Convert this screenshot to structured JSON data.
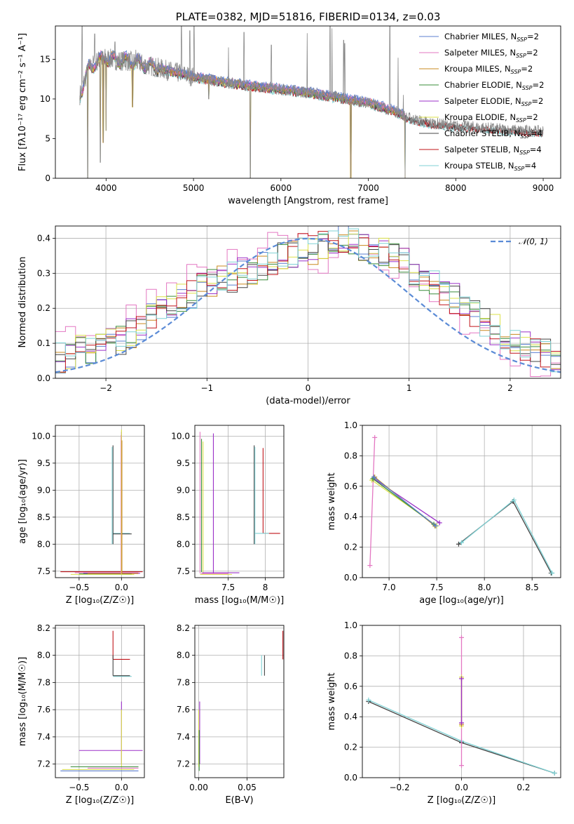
{
  "colors": {
    "chabrier_miles": "#5b7fd1",
    "salpeter_miles": "#e377c2",
    "kroupa_miles": "#c9881f",
    "chabrier_elodie": "#3a8c3a",
    "salpeter_elodie": "#9b30c8",
    "kroupa_elodie": "#dbe04a",
    "chabrier_stelib": "#444444",
    "salpeter_stelib": "#c0141a",
    "kroupa_stelib": "#7fd1d4",
    "normal": "#5b8bd6",
    "grid": "#b0b0b0"
  },
  "chart_data": [
    {
      "id": "spectrum",
      "type": "line",
      "title": "PLATE=0382, MJD=51816, FIBERID=0134, z=0.03",
      "xlabel": "wavelength [Angstrom, rest frame]",
      "ylabel": "Flux [fλ10⁻¹⁷ erg cm⁻² s⁻¹ A⁻¹]",
      "xlim": [
        3420,
        9200
      ],
      "ylim": [
        0,
        19.2
      ],
      "xticks": [
        4000,
        5000,
        6000,
        7000,
        8000,
        9000
      ],
      "yticks": [
        0,
        5,
        10,
        15
      ],
      "grid": false,
      "legend_position": "top-right",
      "data_color": "#8a8a8a",
      "data_wavelength_range": [
        3700,
        9000
      ],
      "continuum": [
        [
          3700,
          10.5
        ],
        [
          3800,
          13.8
        ],
        [
          3900,
          14.8
        ],
        [
          4000,
          15.2
        ],
        [
          4100,
          14.9
        ],
        [
          4300,
          14.7
        ],
        [
          4500,
          14.2
        ],
        [
          4700,
          13.6
        ],
        [
          5000,
          12.8
        ],
        [
          5300,
          12.2
        ],
        [
          5600,
          11.7
        ],
        [
          6000,
          11.2
        ],
        [
          6300,
          10.8
        ],
        [
          6600,
          10.3
        ],
        [
          7000,
          9.5
        ],
        [
          7300,
          8.5
        ],
        [
          7450,
          7.6
        ],
        [
          7700,
          7.0
        ],
        [
          8000,
          6.6
        ],
        [
          8300,
          6.4
        ],
        [
          8600,
          6.1
        ],
        [
          9000,
          5.9
        ]
      ],
      "emission_lines": [
        [
          3727,
          19.2
        ],
        [
          3869,
          18.2
        ],
        [
          4101,
          17.2
        ],
        [
          4340,
          16.2
        ],
        [
          4861,
          19.2
        ],
        [
          4959,
          18.6
        ],
        [
          5007,
          19.2
        ],
        [
          5400,
          16.5
        ],
        [
          5577,
          18.4
        ],
        [
          5890,
          16.8
        ],
        [
          6300,
          18.3
        ],
        [
          6563,
          19.2
        ],
        [
          6584,
          18.9
        ],
        [
          6717,
          17.4
        ],
        [
          6731,
          17.0
        ],
        [
          7245,
          19.2
        ],
        [
          7340,
          15.2
        ],
        [
          7400,
          10.5
        ]
      ],
      "absorption_lines": [
        [
          3790,
          0.0
        ],
        [
          3933,
          2.0
        ],
        [
          3968,
          4.5
        ],
        [
          4000,
          6.0
        ],
        [
          4304,
          9.0
        ],
        [
          5175,
          10.0
        ],
        [
          5650,
          0.0
        ],
        [
          6800,
          0.0
        ],
        [
          7420,
          0.0
        ]
      ],
      "legend": [
        {
          "label": "Chabrier MILES, N",
          "sub": "SSP",
          "suffix": "=2",
          "color_key": "chabrier_miles"
        },
        {
          "label": "Salpeter MILES, N",
          "sub": "SSP",
          "suffix": "=2",
          "color_key": "salpeter_miles"
        },
        {
          "label": "Kroupa MILES, N",
          "sub": "SSP",
          "suffix": "=2",
          "color_key": "kroupa_miles"
        },
        {
          "label": "Chabrier ELODIE, N",
          "sub": "SSP",
          "suffix": "=2",
          "color_key": "chabrier_elodie"
        },
        {
          "label": "Salpeter ELODIE, N",
          "sub": "SSP",
          "suffix": "=2",
          "color_key": "salpeter_elodie"
        },
        {
          "label": "Kroupa ELODIE, N",
          "sub": "SSP",
          "suffix": "=2",
          "color_key": "kroupa_elodie"
        },
        {
          "label": "Chabrier STELIB, N",
          "sub": "SSP",
          "suffix": "=4",
          "color_key": "chabrier_stelib"
        },
        {
          "label": "Salpeter STELIB, N",
          "sub": "SSP",
          "suffix": "=4",
          "color_key": "salpeter_stelib"
        },
        {
          "label": "Kroupa STELIB, N",
          "sub": "SSP",
          "suffix": "=4",
          "color_key": "kroupa_stelib"
        }
      ]
    },
    {
      "id": "residuals",
      "type": "line",
      "xlabel": "(data-model)/error",
      "ylabel": "Normed distribution",
      "xlim": [
        -2.5,
        2.5
      ],
      "ylim": [
        0,
        0.435
      ],
      "xticks": [
        -2,
        -1,
        0,
        1,
        2
      ],
      "yticks": [
        0.0,
        0.1,
        0.2,
        0.3,
        0.4
      ],
      "grid": true,
      "legend_position": "top-right",
      "legend": [
        {
          "label": "𝒩(0, 1)",
          "color_key": "normal"
        }
      ],
      "bin_width": 0.1,
      "histogram_base": [
        0.06,
        0.07,
        0.08,
        0.07,
        0.09,
        0.1,
        0.11,
        0.13,
        0.15,
        0.17,
        0.19,
        0.21,
        0.23,
        0.24,
        0.26,
        0.27,
        0.28,
        0.29,
        0.3,
        0.31,
        0.32,
        0.33,
        0.35,
        0.36,
        0.37,
        0.37,
        0.38,
        0.39,
        0.4,
        0.39,
        0.38,
        0.37,
        0.36,
        0.35,
        0.33,
        0.31,
        0.29,
        0.27,
        0.25,
        0.23,
        0.2,
        0.18,
        0.16,
        0.14,
        0.12,
        0.11,
        0.09,
        0.08,
        0.07,
        0.06
      ]
    },
    {
      "id": "age-vs-Z",
      "type": "scatter",
      "xlabel": "Z [log₁₀(Z/Z☉)]",
      "ylabel": "age  [log₁₀(age/yr)]",
      "xlim": [
        -0.78,
        0.27
      ],
      "ylim": [
        7.38,
        10.2
      ],
      "xticks": [
        -0.5,
        0.0
      ],
      "xtick_labels": [
        "−0.5",
        "0.0"
      ],
      "yticks": [
        7.5,
        8.0,
        8.5,
        9.0,
        9.5,
        10.0
      ],
      "grid": true,
      "segments": [
        [
          "salpeter_stelib",
          -0.72,
          7.49,
          0.25,
          7.49
        ],
        [
          "salpeter_miles",
          -0.55,
          7.47,
          0.2,
          7.47
        ],
        [
          "salpeter_elodie",
          -0.45,
          7.46,
          0.22,
          7.46
        ],
        [
          "kroupa_elodie",
          -0.6,
          7.44,
          0.15,
          7.44
        ],
        [
          "chabrier_elodie",
          -0.5,
          7.45,
          0.12,
          7.45
        ],
        [
          "kroupa_miles",
          -0.4,
          7.455,
          0.2,
          7.455
        ],
        [
          "kroupa_stelib",
          -0.1,
          8.2,
          0.1,
          8.2
        ],
        [
          "chabrier_stelib",
          -0.1,
          8.19,
          0.12,
          8.19
        ],
        [
          "chabrier_stelib",
          -0.1,
          8.0,
          -0.1,
          9.83
        ],
        [
          "kroupa_stelib",
          -0.11,
          8.0,
          -0.11,
          9.8
        ],
        [
          "salpeter_elodie",
          0.0,
          7.44,
          0.0,
          10.08
        ],
        [
          "salpeter_miles",
          -0.005,
          7.45,
          -0.005,
          10.02
        ],
        [
          "kroupa_elodie",
          0.0,
          7.43,
          0.0,
          10.12
        ],
        [
          "kroupa_miles",
          0.005,
          7.45,
          0.005,
          9.92
        ]
      ]
    },
    {
      "id": "age-vs-mass",
      "type": "scatter",
      "xlabel": "mass [log₁₀(M/M☉)]",
      "xlim": [
        7.05,
        8.25
      ],
      "ylim": [
        7.38,
        10.2
      ],
      "xticks": [
        7.5,
        8.0
      ],
      "yticks": [
        7.5,
        8.0,
        8.5,
        9.0,
        9.5,
        10.0
      ],
      "grid": true,
      "segments": [
        [
          "salpeter_miles",
          7.12,
          7.46,
          7.12,
          10.08
        ],
        [
          "chabrier_elodie",
          7.14,
          7.48,
          7.14,
          9.95
        ],
        [
          "kroupa_elodie",
          7.16,
          7.44,
          7.16,
          9.9
        ],
        [
          "salpeter_elodie",
          7.3,
          7.45,
          7.3,
          10.05
        ],
        [
          "salpeter_elodie",
          7.15,
          7.47,
          7.65,
          7.47
        ],
        [
          "kroupa_elodie",
          7.12,
          7.44,
          7.55,
          7.44
        ],
        [
          "salpeter_miles",
          7.13,
          7.455,
          7.5,
          7.455
        ],
        [
          "chabrier_stelib",
          7.85,
          8.0,
          7.85,
          9.83
        ],
        [
          "kroupa_stelib",
          7.86,
          8.0,
          7.86,
          9.8
        ],
        [
          "salpeter_stelib",
          7.97,
          8.2,
          7.97,
          9.78
        ],
        [
          "salpeter_stelib",
          7.97,
          8.2,
          8.2,
          8.2
        ],
        [
          "kroupa_stelib",
          7.86,
          8.2,
          8.05,
          8.2
        ]
      ]
    },
    {
      "id": "mass-weight-vs-age",
      "type": "line",
      "xlabel": "age  [log₁₀(age/yr)]",
      "ylabel": "mass weight",
      "xlim": [
        6.72,
        8.8
      ],
      "ylim": [
        0.0,
        1.0
      ],
      "xticks": [
        7.0,
        7.5,
        8.0,
        8.5
      ],
      "xtick_labels": [
        "7.0",
        "7.5",
        "8.0",
        "8.5"
      ],
      "yticks": [
        0.0,
        0.2,
        0.4,
        0.6,
        0.8,
        1.0
      ],
      "grid": true,
      "series": [
        {
          "color_key": "salpeter_miles",
          "points": [
            [
              6.8,
              0.08
            ],
            [
              6.85,
              0.92
            ]
          ]
        },
        {
          "color_key": "salpeter_elodie",
          "points": [
            [
              6.84,
              0.65
            ],
            [
              7.53,
              0.36
            ]
          ]
        },
        {
          "color_key": "kroupa_miles",
          "points": [
            [
              6.85,
              0.66
            ],
            [
              7.48,
              0.34
            ]
          ]
        },
        {
          "color_key": "kroupa_elodie",
          "points": [
            [
              6.82,
              0.64
            ],
            [
              7.5,
              0.34
            ]
          ]
        },
        {
          "color_key": "chabrier_elodie",
          "points": [
            [
              6.83,
              0.65
            ],
            [
              7.47,
              0.35
            ]
          ]
        },
        {
          "color_key": "chabrier_miles",
          "points": [
            [
              6.84,
              0.66
            ],
            [
              7.49,
              0.34
            ]
          ]
        },
        {
          "color_key": "chabrier_stelib",
          "points": [
            [
              7.73,
              0.22
            ],
            [
              8.3,
              0.5
            ],
            [
              8.7,
              0.03
            ]
          ]
        },
        {
          "color_key": "kroupa_stelib",
          "points": [
            [
              7.76,
              0.23
            ],
            [
              8.31,
              0.51
            ],
            [
              8.71,
              0.03
            ]
          ]
        }
      ]
    },
    {
      "id": "mass-vs-Z",
      "type": "scatter",
      "xlabel": "Z [log₁₀(Z/Z☉)]",
      "ylabel": "mass [log₁₀(M/M☉)]",
      "xlim": [
        -0.78,
        0.27
      ],
      "ylim": [
        7.1,
        8.22
      ],
      "xticks": [
        -0.5,
        0.0
      ],
      "xtick_labels": [
        "−0.5",
        "0.0"
      ],
      "yticks": [
        7.2,
        7.4,
        7.6,
        7.8,
        8.0,
        8.2
      ],
      "grid": true,
      "segments": [
        [
          "salpeter_stelib",
          -0.1,
          7.97,
          0.1,
          7.97
        ],
        [
          "salpeter_stelib",
          -0.1,
          7.97,
          -0.1,
          8.18
        ],
        [
          "kroupa_stelib",
          -0.1,
          7.845,
          0.12,
          7.845
        ],
        [
          "chabrier_stelib",
          -0.1,
          7.85,
          0.1,
          7.85
        ],
        [
          "chabrier_stelib",
          -0.1,
          7.85,
          -0.1,
          8.0
        ],
        [
          "salpeter_elodie",
          -0.5,
          7.3,
          0.25,
          7.3
        ],
        [
          "salpeter_elodie",
          0.0,
          7.2,
          0.0,
          7.66
        ],
        [
          "kroupa_elodie",
          0.0,
          7.18,
          0.0,
          7.6
        ],
        [
          "chabrier_elodie",
          -0.6,
          7.18,
          0.2,
          7.18
        ],
        [
          "kroupa_elodie",
          -0.7,
          7.16,
          0.15,
          7.16
        ],
        [
          "salpeter_miles",
          -0.4,
          7.17,
          0.2,
          7.17
        ],
        [
          "chabrier_miles",
          -0.72,
          7.15,
          0.2,
          7.15
        ]
      ]
    },
    {
      "id": "mass-vs-EBV",
      "type": "scatter",
      "xlabel": "E(B-V)",
      "xlim": [
        -0.004,
        0.088
      ],
      "ylim": [
        7.1,
        8.22
      ],
      "xticks": [
        0.0,
        0.05
      ],
      "xtick_labels": [
        "0.00",
        "0.05"
      ],
      "yticks": [
        7.2,
        7.4,
        7.6,
        7.8,
        8.0,
        8.2
      ],
      "grid": true,
      "segments": [
        [
          "salpeter_elodie",
          0.001,
          7.2,
          0.001,
          7.66
        ],
        [
          "kroupa_elodie",
          0.0,
          7.18,
          0.0,
          7.6
        ],
        [
          "chabrier_elodie",
          0.0005,
          7.15,
          0.0005,
          7.45
        ],
        [
          "kroupa_stelib",
          0.065,
          7.85,
          0.065,
          8.0
        ],
        [
          "chabrier_stelib",
          0.068,
          7.85,
          0.068,
          8.0
        ],
        [
          "salpeter_stelib",
          0.087,
          7.97,
          0.087,
          8.18
        ]
      ]
    },
    {
      "id": "mass-weight-vs-Z",
      "type": "line",
      "xlabel": "Z [log₁₀(Z/Z☉)]",
      "ylabel": "mass weight",
      "xlim": [
        -0.32,
        0.32
      ],
      "ylim": [
        0.0,
        1.0
      ],
      "xticks": [
        -0.2,
        0.0,
        0.2
      ],
      "xtick_labels": [
        "−0.2",
        "0.0",
        "0.2"
      ],
      "yticks": [
        0.0,
        0.2,
        0.4,
        0.6,
        0.8,
        1.0
      ],
      "grid": true,
      "series": [
        {
          "color_key": "chabrier_stelib",
          "points": [
            [
              -0.3,
              0.5
            ],
            [
              0.0,
              0.23
            ],
            [
              0.3,
              0.03
            ]
          ]
        },
        {
          "color_key": "kroupa_stelib",
          "points": [
            [
              -0.3,
              0.51
            ],
            [
              0.0,
              0.24
            ],
            [
              0.3,
              0.03
            ]
          ]
        },
        {
          "color_key": "salpeter_miles",
          "points": [
            [
              0.0,
              0.08
            ],
            [
              0.0,
              0.92
            ]
          ]
        },
        {
          "color_key": "kroupa_elodie",
          "points": [
            [
              0.0,
              0.34
            ],
            [
              0.0,
              0.66
            ]
          ]
        },
        {
          "color_key": "kroupa_miles",
          "points": [
            [
              0.0,
              0.35
            ],
            [
              0.0,
              0.65
            ]
          ]
        },
        {
          "color_key": "salpeter_elodie",
          "points": [
            [
              0.0,
              0.36
            ],
            [
              0.0,
              0.65
            ]
          ]
        }
      ]
    }
  ]
}
